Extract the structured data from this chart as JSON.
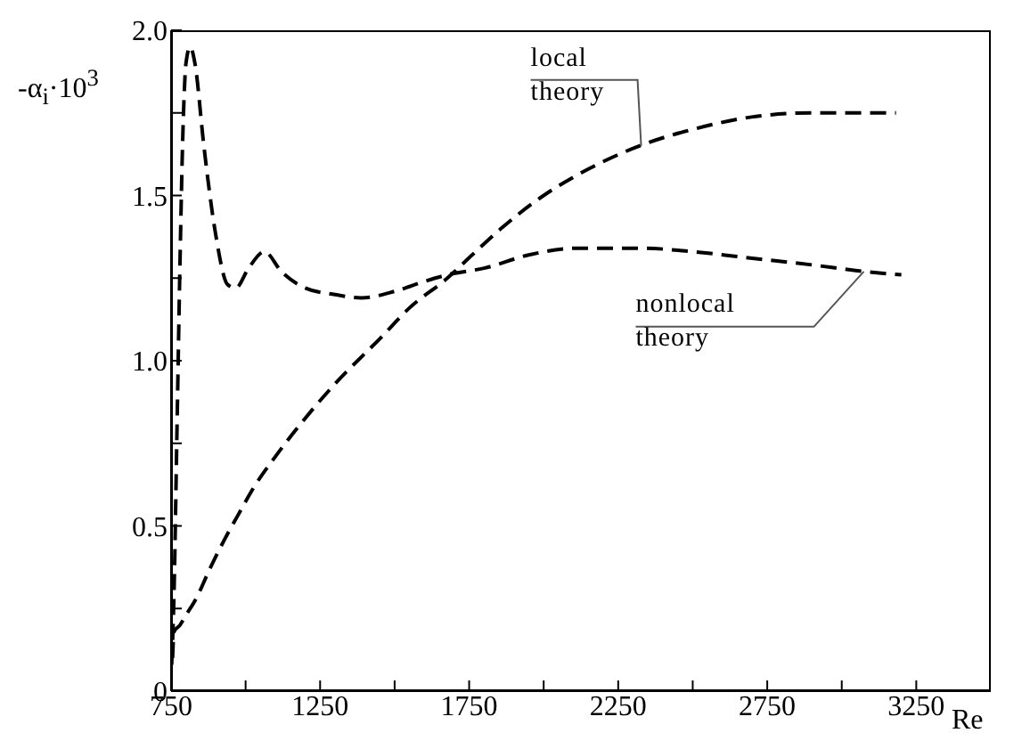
{
  "chart_data": {
    "type": "line",
    "xlabel": "Re",
    "ylabel": "-α$_{i}$·10$^{3}$",
    "xlim": [
      750,
      3500
    ],
    "ylim": [
      0,
      2.0
    ],
    "xticks": [
      750,
      {
        "value": 1000,
        "label": null
      },
      1250,
      {
        "value": 1500,
        "label": null
      },
      1750,
      {
        "value": 2000,
        "label": null
      },
      2250,
      {
        "value": 2500,
        "label": null
      },
      2750,
      {
        "value": 3000,
        "label": null
      },
      3250
    ],
    "yticks": [
      0,
      {
        "value": 0.25,
        "label": null
      },
      0.5,
      {
        "value": 0.75,
        "label": null
      },
      {
        "value": 1.0,
        "label": "1.0"
      },
      {
        "value": 1.25,
        "label": null
      },
      1.5,
      {
        "value": 1.75,
        "label": null
      },
      {
        "value": 2.0,
        "label": "2.0"
      }
    ],
    "line_style": "dashed",
    "marker": "none",
    "annotations": [
      {
        "text": "local theory",
        "x": 2327,
        "y": 1.65
      },
      {
        "text": "nonlocal theory",
        "x": 3074,
        "y": 1.27
      }
    ],
    "series": [
      {
        "color": "#000000",
        "x": [
          755,
          760,
          780,
          800,
          834,
          880,
          930,
          973,
          1030,
          1100,
          1177,
          1300,
          1454,
          1550,
          1677,
          1760,
          1857,
          2000,
          2150,
          2321,
          2500,
          2718,
          2900,
          3050,
          3182
        ],
        "values": [
          0.1,
          0.18,
          0.2,
          0.23,
          0.28,
          0.37,
          0.46,
          0.53,
          0.62,
          0.71,
          0.8,
          0.93,
          1.07,
          1.16,
          1.25,
          1.32,
          1.4,
          1.5,
          1.58,
          1.65,
          1.7,
          1.74,
          1.75,
          1.75,
          1.75
        ]
      },
      {
        "color": "#000000",
        "x": [
          752,
          760,
          770,
          780,
          790,
          800,
          814,
          830,
          860,
          900,
          940,
          967,
          1010,
          1063,
          1120,
          1200,
          1300,
          1388,
          1500,
          1600,
          1677,
          1800,
          1950,
          2100,
          2340,
          2500,
          2700,
          2900,
          3074,
          3200
        ],
        "values": [
          0.08,
          0.3,
          0.8,
          1.3,
          1.7,
          1.9,
          1.95,
          1.9,
          1.65,
          1.38,
          1.23,
          1.22,
          1.28,
          1.33,
          1.27,
          1.22,
          1.2,
          1.19,
          1.21,
          1.24,
          1.26,
          1.28,
          1.32,
          1.34,
          1.34,
          1.33,
          1.31,
          1.29,
          1.27,
          1.26
        ]
      }
    ]
  }
}
